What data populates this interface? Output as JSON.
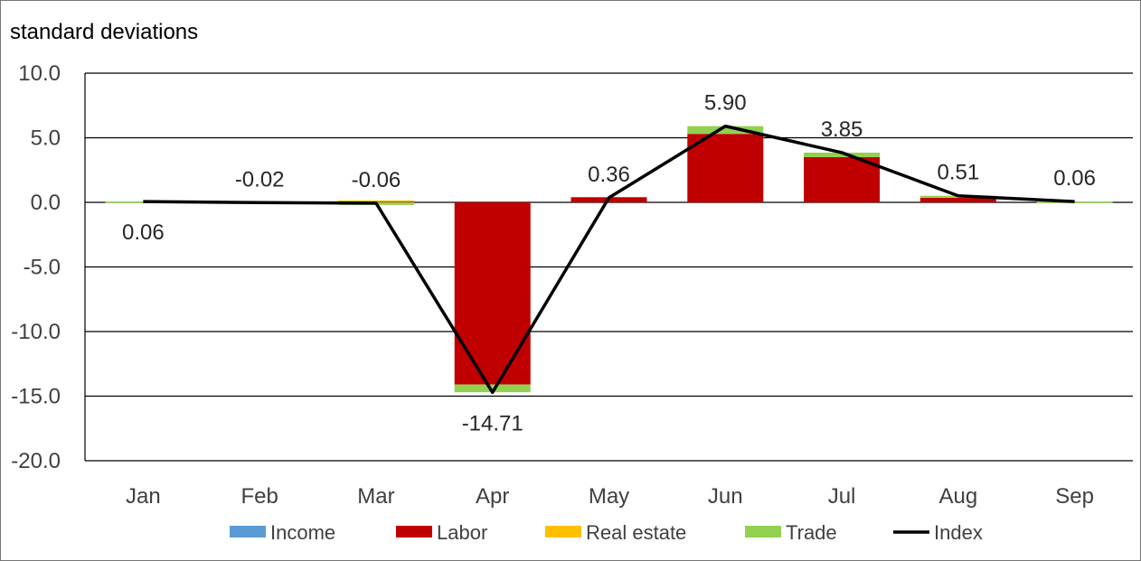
{
  "chart_data": {
    "type": "bar",
    "subtype": "stacked bar with line",
    "ylabel": "standard deviations",
    "ylim": [
      -20,
      10
    ],
    "y_ticks": [
      "10.0",
      "5.0",
      "0.0",
      "-5.0",
      "-10.0",
      "-15.0",
      "-20.0"
    ],
    "y_tick_values": [
      10,
      5,
      0,
      -5,
      -10,
      -15,
      -20
    ],
    "categories": [
      "Jan",
      "Feb",
      "Mar",
      "Apr",
      "May",
      "Jun",
      "Jul",
      "Aug",
      "Sep"
    ],
    "grid": true,
    "legend_position": "bottom",
    "series": [
      {
        "name": "Income",
        "kind": "bar",
        "color": "#5b9bd5",
        "values": [
          0.0,
          0.0,
          0.0,
          0.0,
          0.0,
          0.0,
          0.0,
          0.0,
          0.0
        ]
      },
      {
        "name": "Labor",
        "kind": "bar",
        "color": "#c00000",
        "values": [
          0.0,
          -0.05,
          0.1,
          -14.1,
          0.4,
          5.3,
          3.5,
          0.4,
          0.0
        ]
      },
      {
        "name": "Real estate",
        "kind": "bar",
        "color": "#ffc000",
        "values": [
          0.0,
          0.0,
          0.05,
          0.0,
          0.0,
          0.0,
          0.0,
          0.05,
          0.0
        ]
      },
      {
        "name": "Trade",
        "kind": "bar",
        "color": "#92d050",
        "values": [
          0.06,
          0.03,
          -0.2,
          -0.6,
          0.0,
          0.6,
          0.35,
          0.06,
          0.06
        ]
      },
      {
        "name": "Index",
        "kind": "line",
        "color": "#000000",
        "values": [
          0.06,
          -0.02,
          -0.06,
          -14.71,
          0.36,
          5.9,
          3.85,
          0.51,
          0.06
        ],
        "labels": [
          "0.06",
          "-0.02",
          "-0.06",
          "-14.71",
          "0.36",
          "5.90",
          "3.85",
          "0.51",
          "0.06"
        ]
      }
    ]
  }
}
